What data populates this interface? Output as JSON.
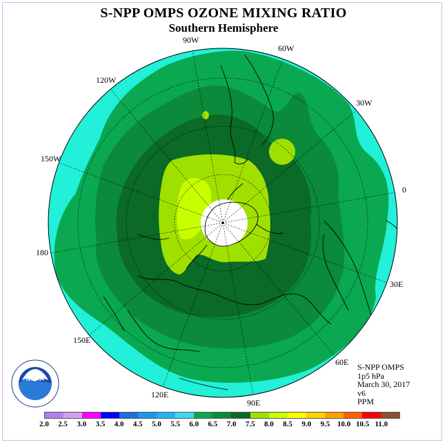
{
  "title": "S-NPP OMPS OZONE MIXING RATIO",
  "subtitle": "Southern Hemisphere",
  "longitude_labels": {
    "90W": "90W",
    "60W": "60W",
    "30W": "30W",
    "0": "0",
    "120W": "120W",
    "150W": "150W",
    "180": "180",
    "30E": "30E",
    "60E": "60E",
    "90E": "90E",
    "120E": "120E",
    "150E": "150E"
  },
  "info": {
    "instrument": "S-NPP OMPS",
    "pressure": "1p5 hPa",
    "date": "March 30, 2017",
    "version": "v6",
    "units": "PPM"
  },
  "logo_text": "NOAA",
  "colorbar": {
    "levels": [
      "2.0",
      "2.5",
      "3.0",
      "3.5",
      "4.0",
      "4.5",
      "5.0",
      "5.5",
      "6.0",
      "6.5",
      "7.0",
      "7.5",
      "8.0",
      "8.5",
      "9.0",
      "9.5",
      "10.0",
      "10.5",
      "11.0"
    ],
    "colors": [
      "#b080f0",
      "#d0a0f0",
      "#ff00ff",
      "#0000ff",
      "#1e6ee0",
      "#1c96ee",
      "#22b4f0",
      "#40d8f0",
      "#0aa850",
      "#0a8a3a",
      "#0a6a26",
      "#a0e000",
      "#c8ff00",
      "#ffff00",
      "#ffd200",
      "#ffa000",
      "#ff6000",
      "#ff0000",
      "#8a5030"
    ]
  },
  "map_colors": {
    "ocean_ring": "#22f0d8",
    "band_6_0": "#0aa850",
    "band_6_5": "#0a8a3a",
    "band_7_0": "#0a6a26",
    "band_7_5": "#a0e000",
    "band_8_0": "#c8ff00",
    "missing": "#ffffff"
  }
}
